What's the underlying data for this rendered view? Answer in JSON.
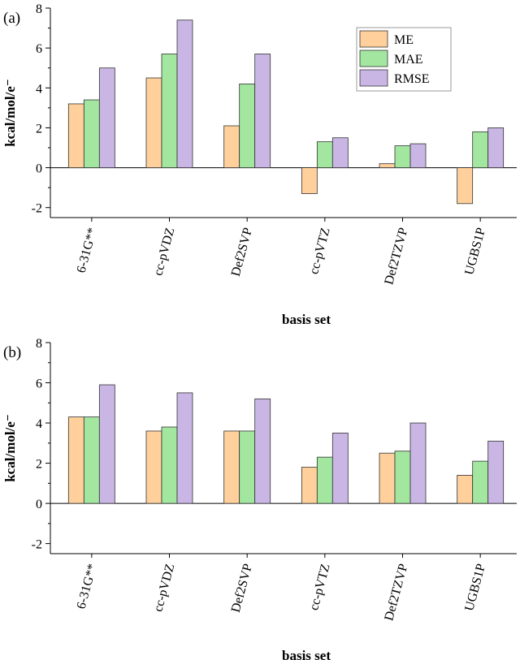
{
  "chart_data": [
    {
      "type": "bar",
      "panel_label": "(a)",
      "categories": [
        "6-31G**",
        "cc-pVDZ",
        "Def2SVP",
        "cc-pVTZ",
        "Def2TZVP",
        "UGBS1P"
      ],
      "series": [
        {
          "name": "ME",
          "color": "#ffd09b",
          "values": [
            3.2,
            4.5,
            2.1,
            -1.3,
            0.2,
            -1.8
          ]
        },
        {
          "name": "MAE",
          "color": "#a3e6a0",
          "values": [
            3.4,
            5.7,
            4.2,
            1.3,
            1.1,
            1.8
          ]
        },
        {
          "name": "RMSE",
          "color": "#c9b6e4",
          "values": [
            5.0,
            7.4,
            5.7,
            1.5,
            1.2,
            2.0
          ]
        }
      ],
      "xlabel": "basis set",
      "ylabel": "kcal/mol/e⁻",
      "ylim": [
        -2.5,
        8
      ],
      "yticks": [
        -2,
        0,
        2,
        4,
        6,
        8
      ],
      "legend": "top-right",
      "grid": false
    },
    {
      "type": "bar",
      "panel_label": "(b)",
      "categories": [
        "6-31G**",
        "cc-pVDZ",
        "Def2SVP",
        "cc-pVTZ",
        "Def2TZVP",
        "UGBS1P"
      ],
      "series": [
        {
          "name": "ME",
          "color": "#ffd09b",
          "values": [
            4.3,
            3.6,
            3.6,
            1.8,
            2.5,
            1.4
          ]
        },
        {
          "name": "MAE",
          "color": "#a3e6a0",
          "values": [
            4.3,
            3.8,
            3.6,
            2.3,
            2.6,
            2.1
          ]
        },
        {
          "name": "RMSE",
          "color": "#c9b6e4",
          "values": [
            5.9,
            5.5,
            5.2,
            3.5,
            4.0,
            3.1
          ]
        }
      ],
      "xlabel": "basis set",
      "ylabel": "kcal/mol/e⁻",
      "ylim": [
        -2.5,
        8
      ],
      "yticks": [
        -2,
        0,
        2,
        4,
        6,
        8
      ],
      "legend": "none",
      "grid": false
    }
  ]
}
